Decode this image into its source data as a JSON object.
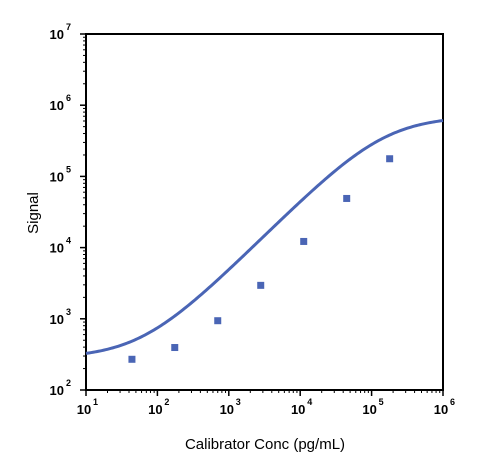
{
  "chart_data": {
    "type": "scatter",
    "title": "",
    "xlabel": "Calibrator Conc (pg/mL)",
    "ylabel": "Signal",
    "xscale": "log",
    "yscale": "log",
    "xlim": [
      10,
      1000000
    ],
    "ylim": [
      100,
      10000000
    ],
    "x_ticks": [
      {
        "base": "10",
        "exp": "1",
        "value": 10
      },
      {
        "base": "10",
        "exp": "2",
        "value": 100
      },
      {
        "base": "10",
        "exp": "3",
        "value": 1000
      },
      {
        "base": "10",
        "exp": "4",
        "value": 10000
      },
      {
        "base": "10",
        "exp": "5",
        "value": 100000
      },
      {
        "base": "10",
        "exp": "6",
        "value": 1000000
      }
    ],
    "y_ticks": [
      {
        "base": "10",
        "exp": "2",
        "value": 100
      },
      {
        "base": "10",
        "exp": "3",
        "value": 1000
      },
      {
        "base": "10",
        "exp": "4",
        "value": 10000
      },
      {
        "base": "10",
        "exp": "5",
        "value": 100000
      },
      {
        "base": "10",
        "exp": "6",
        "value": 1000000
      },
      {
        "base": "10",
        "exp": "7",
        "value": 10000000
      }
    ],
    "grid": false,
    "legend": "none",
    "colors": {
      "series": "#4a65b5",
      "axis": "#000000"
    },
    "series": [
      {
        "marker": "square",
        "points": [
          {
            "x": 44,
            "y": 270
          },
          {
            "x": 175,
            "y": 395
          },
          {
            "x": 700,
            "y": 940
          },
          {
            "x": 2800,
            "y": 2950
          },
          {
            "x": 11200,
            "y": 12200
          },
          {
            "x": 44800,
            "y": 49000
          },
          {
            "x": 179000,
            "y": 177000
          }
        ]
      }
    ],
    "fit": {
      "type": "4PL",
      "bottom": 280,
      "top": 700000,
      "ec50": 150000,
      "hill": 1,
      "x_range": [
        10,
        1000000
      ]
    }
  }
}
